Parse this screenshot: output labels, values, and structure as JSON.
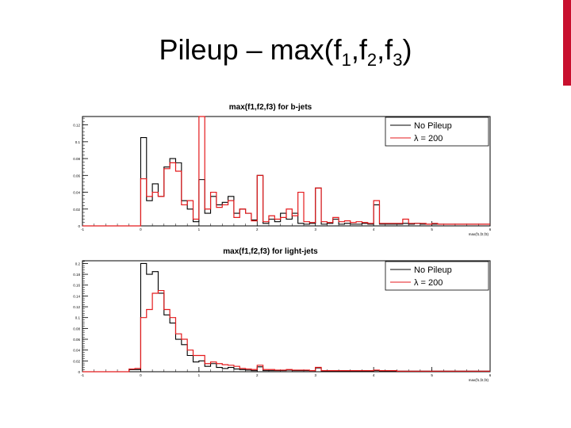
{
  "slide": {
    "title_prefix": "Pileup – max(f",
    "title_sub1": "1",
    "title_sep1": ",f",
    "title_sub2": "2",
    "title_sep2": ",f",
    "title_sub3": "3",
    "title_suffix": ")",
    "accent_color": "#c8102e"
  },
  "chart_data": [
    {
      "type": "step-histogram",
      "title": "max(f1,f2,f3) for b-jets",
      "xlabel": "max(f1,f2,f3)",
      "ylabel": "",
      "xlim": [
        -1,
        6
      ],
      "ylim": [
        0,
        0.13
      ],
      "grid": false,
      "legend_position": "top-right",
      "x_ticks": [
        "-1",
        "0",
        "1",
        "2",
        "3",
        "4",
        "5",
        "6"
      ],
      "y_ticks": [
        "0",
        "0.02",
        "0.04",
        "0.06",
        "0.08",
        "0.1",
        "0.12"
      ],
      "bin_edges": [
        -1.0,
        -0.9,
        -0.8,
        -0.7,
        -0.6,
        -0.5,
        -0.4,
        -0.3,
        -0.2,
        -0.1,
        0.0,
        0.1,
        0.2,
        0.3,
        0.4,
        0.5,
        0.6,
        0.7,
        0.8,
        0.9,
        1.0,
        1.1,
        1.2,
        1.3,
        1.4,
        1.5,
        1.6,
        1.7,
        1.8,
        1.9,
        2.0,
        2.1,
        2.2,
        2.3,
        2.4,
        2.5,
        2.6,
        2.7,
        2.8,
        2.9,
        3.0,
        3.1,
        3.2,
        3.3,
        3.4,
        3.5,
        3.6,
        3.7,
        3.8,
        3.9,
        4.0,
        4.1,
        4.2,
        4.3,
        4.4,
        4.5,
        4.6,
        4.7,
        4.8,
        4.9,
        5.0,
        5.1,
        5.2,
        5.3,
        5.4,
        5.5,
        5.6,
        5.7,
        5.8,
        5.9,
        6.0
      ],
      "series": [
        {
          "name": "No Pileup",
          "color": "#000000",
          "values": [
            0,
            0,
            0,
            0,
            0,
            0,
            0,
            0,
            0,
            0,
            0.105,
            0.03,
            0.05,
            0.035,
            0.07,
            0.08,
            0.075,
            0.03,
            0.02,
            0.005,
            0.055,
            0.015,
            0.035,
            0.025,
            0.028,
            0.035,
            0.015,
            0.02,
            0.015,
            0.007,
            0.06,
            0.003,
            0.008,
            0.005,
            0.015,
            0.008,
            0.015,
            0.003,
            0.002,
            0.003,
            0.045,
            0.002,
            0.003,
            0.008,
            0.002,
            0.003,
            0.002,
            0.002,
            0.003,
            0.002,
            0.025,
            0.002,
            0.002,
            0.002,
            0.002,
            0.003,
            0.002,
            0.003,
            0.002,
            0.002,
            0.002,
            0.002,
            0.002,
            0.002,
            0.002,
            0.002,
            0.002,
            0.002,
            0.002,
            0.002
          ]
        },
        {
          "name": "λ = 200",
          "color": "#e41a1c",
          "values": [
            0,
            0,
            0,
            0,
            0,
            0,
            0,
            0,
            0,
            0,
            0.056,
            0.035,
            0.04,
            0.035,
            0.068,
            0.075,
            0.065,
            0.025,
            0.03,
            0.008,
            0.14,
            0.02,
            0.04,
            0.022,
            0.025,
            0.03,
            0.01,
            0.02,
            0.015,
            0.006,
            0.06,
            0.005,
            0.012,
            0.008,
            0.01,
            0.02,
            0.012,
            0.04,
            0.005,
            0.004,
            0.045,
            0.005,
            0.004,
            0.01,
            0.005,
            0.006,
            0.004,
            0.005,
            0.004,
            0.003,
            0.03,
            0.003,
            0.003,
            0.003,
            0.003,
            0.008,
            0.003,
            0.003,
            0.003,
            0.002,
            0.003,
            0.002,
            0.002,
            0.002,
            0.002,
            0.002,
            0.002,
            0.002,
            0.002,
            0.002
          ]
        }
      ]
    },
    {
      "type": "step-histogram",
      "title": "max(f1,f2,f3) for light-jets",
      "xlabel": "max(f1,f2,f3)",
      "ylabel": "",
      "xlim": [
        -1,
        6
      ],
      "ylim": [
        0,
        0.205
      ],
      "grid": false,
      "legend_position": "top-right",
      "x_ticks": [
        "-1",
        "0",
        "1",
        "2",
        "3",
        "4",
        "5",
        "6"
      ],
      "y_ticks": [
        "0",
        "0.02",
        "0.04",
        "0.06",
        "0.08",
        "0.1",
        "0.12",
        "0.14",
        "0.16",
        "0.18",
        "0.2"
      ],
      "bin_edges": [
        -1.0,
        -0.9,
        -0.8,
        -0.7,
        -0.6,
        -0.5,
        -0.4,
        -0.3,
        -0.2,
        -0.1,
        0.0,
        0.1,
        0.2,
        0.3,
        0.4,
        0.5,
        0.6,
        0.7,
        0.8,
        0.9,
        1.0,
        1.1,
        1.2,
        1.3,
        1.4,
        1.5,
        1.6,
        1.7,
        1.8,
        1.9,
        2.0,
        2.1,
        2.2,
        2.3,
        2.4,
        2.5,
        2.6,
        2.7,
        2.8,
        2.9,
        3.0,
        3.1,
        3.2,
        3.3,
        3.4,
        3.5,
        3.6,
        3.7,
        3.8,
        3.9,
        4.0,
        4.1,
        4.2,
        4.3,
        4.4,
        4.5,
        4.6,
        4.7,
        4.8,
        4.9,
        5.0,
        5.1,
        5.2,
        5.3,
        5.4,
        5.5,
        5.6,
        5.7,
        5.8,
        5.9,
        6.0
      ],
      "series": [
        {
          "name": "No Pileup",
          "color": "#000000",
          "values": [
            0,
            0,
            0,
            0,
            0,
            0,
            0,
            0,
            0.004,
            0.004,
            0.2,
            0.18,
            0.185,
            0.145,
            0.105,
            0.09,
            0.06,
            0.05,
            0.03,
            0.018,
            0.02,
            0.01,
            0.015,
            0.008,
            0.006,
            0.008,
            0.005,
            0.004,
            0.003,
            0.002,
            0.009,
            0.002,
            0.002,
            0.002,
            0.002,
            0.003,
            0.002,
            0.002,
            0.002,
            0.002,
            0.007,
            0.001,
            0.001,
            0.001,
            0.001,
            0.001,
            0.001,
            0.001,
            0.001,
            0.001,
            0.002,
            0.001,
            0.001,
            0.001,
            0.001,
            0.001,
            0.001,
            0.001,
            0.001,
            0.001,
            0.001,
            0.001,
            0.001,
            0.001,
            0.001,
            0.001,
            0.001,
            0.001,
            0.001,
            0.001
          ]
        },
        {
          "name": "λ = 200",
          "color": "#e41a1c",
          "values": [
            0,
            0,
            0,
            0,
            0,
            0,
            0,
            0,
            0.005,
            0.006,
            0.1,
            0.115,
            0.145,
            0.15,
            0.115,
            0.1,
            0.07,
            0.06,
            0.04,
            0.03,
            0.03,
            0.015,
            0.018,
            0.015,
            0.013,
            0.012,
            0.01,
            0.006,
            0.005,
            0.004,
            0.012,
            0.004,
            0.004,
            0.003,
            0.003,
            0.004,
            0.003,
            0.003,
            0.003,
            0.002,
            0.008,
            0.002,
            0.002,
            0.002,
            0.002,
            0.002,
            0.002,
            0.002,
            0.002,
            0.002,
            0.003,
            0.002,
            0.002,
            0.002,
            0.001,
            0.001,
            0.001,
            0.001,
            0.001,
            0.001,
            0.001,
            0.001,
            0.001,
            0.001,
            0.001,
            0.001,
            0.001,
            0.001,
            0.001,
            0.001
          ]
        }
      ]
    }
  ]
}
